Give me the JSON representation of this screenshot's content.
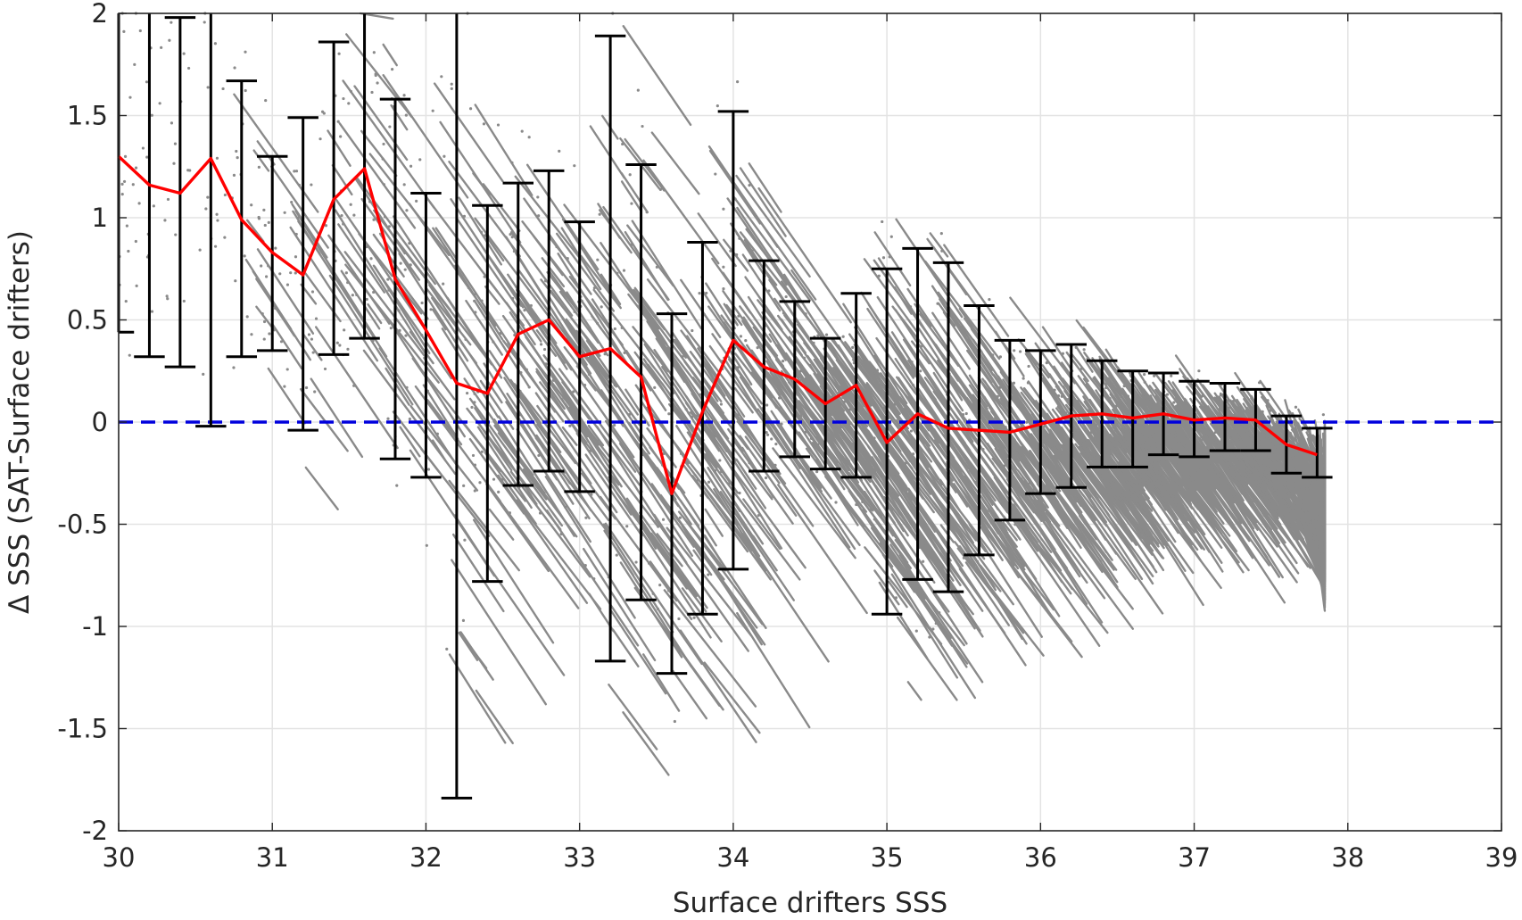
{
  "chart_data": {
    "type": "scatter",
    "title": "",
    "xlabel": "Surface drifters SSS",
    "ylabel": "Δ SSS (SAT-Surface drifters)",
    "xlim": [
      30,
      39
    ],
    "ylim": [
      -2,
      2
    ],
    "x_ticks": [
      "30",
      "31",
      "32",
      "33",
      "34",
      "35",
      "36",
      "37",
      "38",
      "39"
    ],
    "y_ticks": [
      "2",
      "1.5",
      "1",
      "0.5",
      "0",
      "-0.5",
      "-1",
      "-1.5",
      "-2"
    ],
    "grid": true,
    "legend": "none",
    "reference_line": {
      "y": 0,
      "style": "dashed",
      "color": "#0000dd"
    },
    "colors": {
      "scatter": "#8a8a8a",
      "errorbar": "#000000",
      "mean": "#ff0000",
      "zero": "#0000dd"
    },
    "series": [
      {
        "type": "errorbar-line",
        "x": [
          30.0,
          30.2,
          30.4,
          30.6,
          30.8,
          31.0,
          31.2,
          31.4,
          31.6,
          31.8,
          32.0,
          32.2,
          32.4,
          32.6,
          32.8,
          33.0,
          33.2,
          33.4,
          33.6,
          33.8,
          34.0,
          34.2,
          34.4,
          34.6,
          34.8,
          35.0,
          35.2,
          35.4,
          35.6,
          35.8,
          36.0,
          36.2,
          36.4,
          36.6,
          36.8,
          37.0,
          37.2,
          37.4,
          37.6,
          37.8
        ],
        "mean": [
          1.3,
          1.16,
          1.12,
          1.29,
          0.99,
          0.83,
          0.72,
          1.09,
          1.24,
          0.7,
          0.45,
          0.19,
          0.14,
          0.43,
          0.5,
          0.32,
          0.36,
          0.22,
          -0.35,
          0.05,
          0.4,
          0.27,
          0.21,
          0.09,
          0.18,
          -0.1,
          0.04,
          -0.03,
          -0.04,
          -0.05,
          -0.01,
          0.03,
          0.04,
          0.02,
          0.04,
          0.01,
          0.02,
          0.01,
          -0.11,
          -0.16
        ],
        "lower": [
          0.44,
          0.32,
          0.27,
          -0.02,
          0.32,
          0.35,
          -0.04,
          0.33,
          0.41,
          -0.18,
          -0.27,
          -1.84,
          -0.78,
          -0.31,
          -0.24,
          -0.34,
          -1.17,
          -0.87,
          -1.23,
          -0.94,
          -0.72,
          -0.24,
          -0.17,
          -0.23,
          -0.27,
          -0.94,
          -0.77,
          -0.83,
          -0.65,
          -0.48,
          -0.35,
          -0.32,
          -0.22,
          -0.22,
          -0.16,
          -0.17,
          -0.14,
          -0.14,
          -0.25,
          -0.27
        ],
        "upper": [
          2.0,
          2.0,
          1.98,
          2.0,
          1.67,
          1.3,
          1.49,
          1.86,
          2.0,
          1.58,
          1.12,
          2.0,
          1.06,
          1.17,
          1.23,
          0.98,
          1.89,
          1.26,
          0.53,
          0.88,
          1.52,
          0.79,
          0.59,
          0.41,
          0.63,
          0.75,
          0.85,
          0.78,
          0.57,
          0.4,
          0.35,
          0.38,
          0.3,
          0.25,
          0.24,
          0.2,
          0.19,
          0.16,
          0.03,
          -0.03
        ]
      }
    ]
  }
}
